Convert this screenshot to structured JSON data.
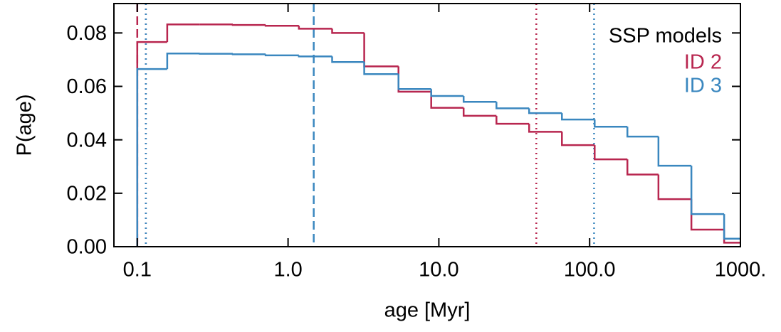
{
  "chart_data": {
    "type": "step-histogram",
    "xlabel": "age [Myr]",
    "ylabel": "P(age)",
    "xscale": "log",
    "xlim": [
      0.07,
      1000
    ],
    "ylim": [
      0,
      0.091
    ],
    "xticks": [
      0.1,
      {
        "value": 1,
        "label": "1.0"
      },
      {
        "value": 10,
        "label": "10.0"
      },
      {
        "value": 100,
        "label": "100.0"
      },
      {
        "value": 1000,
        "label": "1000."
      }
    ],
    "yticks": [
      {
        "value": 0,
        "label": "0.00"
      },
      {
        "value": 0.02,
        "label": "0.02"
      },
      {
        "value": 0.04,
        "label": "0.04"
      },
      {
        "value": 0.06,
        "label": "0.06"
      },
      {
        "value": 0.08,
        "label": "0.08"
      }
    ],
    "legend_title": "SSP models",
    "legend": "upper right",
    "bins": [
      0.1,
      0.158,
      0.26,
      0.43,
      0.71,
      1.18,
      1.96,
      3.2,
      5.4,
      8.9,
      14.6,
      24.1,
      39.7,
      65.5,
      108,
      178,
      286,
      473,
      780,
      1000
    ],
    "series": [
      {
        "name": "ID 2",
        "color": "#b8264f",
        "values": [
          0.0766,
          0.0832,
          0.0832,
          0.083,
          0.0827,
          0.0816,
          0.08,
          0.0675,
          0.058,
          0.052,
          0.049,
          0.046,
          0.043,
          0.038,
          0.0327,
          0.027,
          0.0178,
          0.0064,
          0.0015
        ],
        "vlines": [
          {
            "x": 0.1,
            "style": "dashed"
          },
          {
            "x": 0.114,
            "style": "dotted"
          },
          {
            "x": 44.3,
            "style": "dotted"
          }
        ]
      },
      {
        "name": "ID 3",
        "color": "#3a87bf",
        "values": [
          0.0665,
          0.0723,
          0.0722,
          0.072,
          0.0716,
          0.0712,
          0.0691,
          0.0646,
          0.059,
          0.0564,
          0.0542,
          0.0518,
          0.05,
          0.0476,
          0.0449,
          0.0412,
          0.0303,
          0.0122,
          0.003
        ],
        "vlines": [
          {
            "x": 1.48,
            "style": "dashed"
          },
          {
            "x": 0.114,
            "style": "dotted"
          },
          {
            "x": 107,
            "style": "dotted"
          }
        ]
      }
    ]
  }
}
